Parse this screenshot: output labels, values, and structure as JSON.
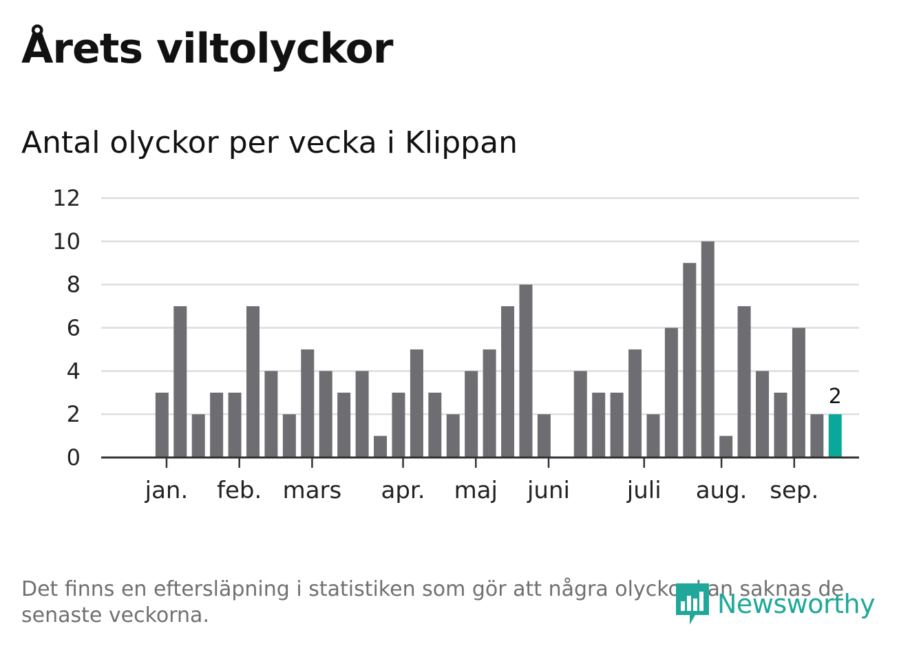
{
  "header": {
    "title": "Årets viltolyckor",
    "subtitle": "Antal olyckor per vecka i Klippan"
  },
  "footnote": "Det finns en eftersläpning i statistiken som gör att några olyckor kan saknas de senaste veckorna.",
  "branding": {
    "name": "Newsworthy",
    "icon": "bar-chart-bubble-icon"
  },
  "colors": {
    "bar": "#6e6d72",
    "highlight": "#0aa89a",
    "grid": "#dddddd",
    "axis": "#333333",
    "logo": "#1fa89a"
  },
  "chart_data": {
    "type": "bar",
    "title": "Antal olyckor per vecka i Klippan",
    "xlabel": "",
    "ylabel": "",
    "ylim": [
      0,
      12
    ],
    "yticks": [
      0,
      2,
      4,
      6,
      8,
      10,
      12
    ],
    "grid": true,
    "week_count": 40,
    "values": [
      null,
      null,
      3,
      7,
      2,
      3,
      3,
      7,
      4,
      2,
      5,
      4,
      3,
      4,
      1,
      3,
      5,
      3,
      2,
      4,
      5,
      7,
      8,
      2,
      0,
      4,
      3,
      3,
      5,
      2,
      6,
      9,
      10,
      1,
      7,
      4,
      3,
      6,
      2,
      2
    ],
    "highlight_index": 39,
    "highlight_label": "2",
    "month_ticks": [
      {
        "label": "jan.",
        "week": 2.25
      },
      {
        "label": "feb.",
        "week": 6.25
      },
      {
        "label": "mars",
        "week": 10.25
      },
      {
        "label": "apr.",
        "week": 15.25
      },
      {
        "label": "maj",
        "week": 19.25
      },
      {
        "label": "juni",
        "week": 23.25
      },
      {
        "label": "juli",
        "week": 28.5
      },
      {
        "label": "aug.",
        "week": 32.75
      },
      {
        "label": "sep.",
        "week": 36.75
      }
    ]
  }
}
